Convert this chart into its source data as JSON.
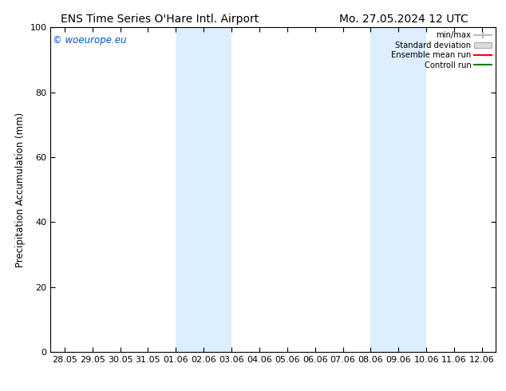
{
  "title_left": "ENS Time Series O'Hare Intl. Airport",
  "title_right": "Mo. 27.05.2024 12 UTC",
  "ylabel": "Precipitation Accumulation (mm)",
  "watermark": "© woeurope.eu",
  "watermark_color": "#0055cc",
  "ylim": [
    0,
    100
  ],
  "yticks": [
    0,
    20,
    40,
    60,
    80,
    100
  ],
  "xtick_labels": [
    "28.05",
    "29.05",
    "30.05",
    "31.05",
    "01.06",
    "02.06",
    "03.06",
    "04.06",
    "05.06",
    "06.06",
    "07.06",
    "08.06",
    "09.06",
    "10.06",
    "11.06",
    "12.06"
  ],
  "xtick_positions": [
    0,
    1,
    2,
    3,
    4,
    5,
    6,
    7,
    8,
    9,
    10,
    11,
    12,
    13,
    14,
    15
  ],
  "xlim": [
    -0.5,
    15.5
  ],
  "shaded_regions": [
    {
      "x_start": 4,
      "x_end": 6,
      "color": "#ddeeff"
    },
    {
      "x_start": 11,
      "x_end": 13,
      "color": "#ddeeff"
    }
  ],
  "legend_labels": [
    "min/max",
    "Standard deviation",
    "Ensemble mean run",
    "Controll run"
  ],
  "legend_colors": [
    "#999999",
    "#cccccc",
    "#ff0000",
    "#008000"
  ],
  "bg_color": "#ffffff",
  "title_fontsize": 10,
  "label_fontsize": 8.5,
  "tick_fontsize": 8,
  "watermark_fontsize": 8.5
}
